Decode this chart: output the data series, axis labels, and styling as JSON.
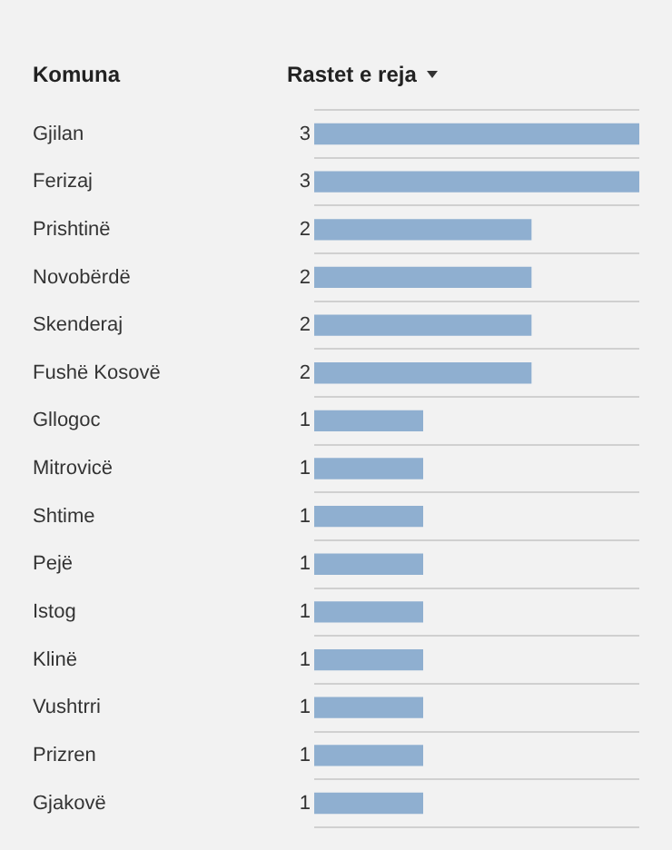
{
  "chart_data": {
    "type": "bar",
    "orientation": "horizontal",
    "ylabel": "Komuna",
    "xlabel": "Rastet e reja",
    "categories": [
      "Gjilan",
      "Ferizaj",
      "Prishtinë",
      "Novobërdë",
      "Skenderaj",
      "Fushë Kosovë",
      "Gllogoc",
      "Mitrovicë",
      "Shtime",
      "Pejë",
      "Istog",
      "Klinë",
      "Vushtrri",
      "Prizren",
      "Gjakovë"
    ],
    "values": [
      3,
      3,
      2,
      2,
      2,
      2,
      1,
      1,
      1,
      1,
      1,
      1,
      1,
      1,
      1
    ],
    "color": "#8fafd0",
    "data_labels": true,
    "grid": "y",
    "legend": false
  }
}
